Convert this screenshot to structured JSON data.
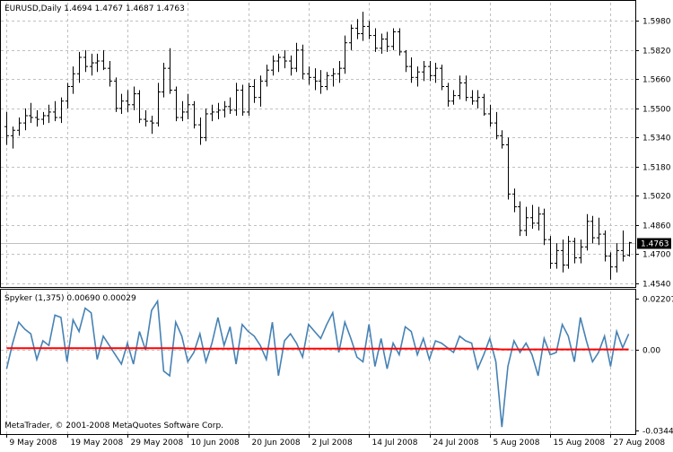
{
  "main_header": {
    "text": "EURUSD,Daily  1.4694 1.4767 1.4687 1.4763"
  },
  "indicator_header": {
    "text": "Spyker (1,375) 0.00690 0.00029"
  },
  "footer": {
    "copyright": "MetaTrader, © 2001-2008 MetaQuotes Software Corp."
  },
  "colors": {
    "background": "#ffffff",
    "grid": "#c0c0c0",
    "bar": "#000000",
    "oscillator": "#4682b4",
    "signal": "#ff0000",
    "price_tag_bg": "#000000",
    "price_tag_fg": "#ffffff"
  },
  "chart_data": [
    {
      "type": "ohlc",
      "symbol": "EURUSD",
      "timeframe": "Daily",
      "last_ohlc": {
        "open": 1.4694,
        "high": 1.4767,
        "low": 1.4687,
        "close": 1.4763
      },
      "current_price_label": "1.4763",
      "y_ticks": [
        "1.5980",
        "1.5820",
        "1.5660",
        "1.5500",
        "1.5340",
        "1.5180",
        "1.5020",
        "1.4860",
        "1.4700",
        "1.4540"
      ],
      "ylim": [
        1.452,
        1.608
      ],
      "x_ticks": [
        "9 May 2008",
        "19 May 2008",
        "29 May 2008",
        "10 Jun 2008",
        "20 Jun 2008",
        "2 Jul 2008",
        "14 Jul 2008",
        "24 Jul 2008",
        "5 Aug 2008",
        "15 Aug 2008",
        "27 Aug 2008"
      ],
      "grid": true,
      "bars": [
        [
          1.54,
          1.548,
          1.53,
          1.535
        ],
        [
          1.535,
          1.54,
          1.528,
          1.538
        ],
        [
          1.538,
          1.545,
          1.535,
          1.542
        ],
        [
          1.542,
          1.55,
          1.538,
          1.546
        ],
        [
          1.546,
          1.553,
          1.542,
          1.545
        ],
        [
          1.545,
          1.549,
          1.54,
          1.544
        ],
        [
          1.544,
          1.548,
          1.541,
          1.546
        ],
        [
          1.546,
          1.552,
          1.542,
          1.548
        ],
        [
          1.548,
          1.554,
          1.543,
          1.545
        ],
        [
          1.545,
          1.556,
          1.542,
          1.554
        ],
        [
          1.554,
          1.564,
          1.55,
          1.562
        ],
        [
          1.562,
          1.573,
          1.558,
          1.569
        ],
        [
          1.569,
          1.581,
          1.564,
          1.578
        ],
        [
          1.578,
          1.582,
          1.57,
          1.573
        ],
        [
          1.573,
          1.58,
          1.568,
          1.575
        ],
        [
          1.575,
          1.58,
          1.57,
          1.576
        ],
        [
          1.576,
          1.582,
          1.571,
          1.572
        ],
        [
          1.572,
          1.576,
          1.562,
          1.565
        ],
        [
          1.565,
          1.567,
          1.548,
          1.55
        ],
        [
          1.55,
          1.558,
          1.547,
          1.554
        ],
        [
          1.554,
          1.56,
          1.548,
          1.552
        ],
        [
          1.552,
          1.562,
          1.549,
          1.558
        ],
        [
          1.558,
          1.56,
          1.542,
          1.544
        ],
        [
          1.544,
          1.549,
          1.54,
          1.543
        ],
        [
          1.543,
          1.546,
          1.536,
          1.542
        ],
        [
          1.542,
          1.564,
          1.54,
          1.559
        ],
        [
          1.559,
          1.575,
          1.556,
          1.572
        ],
        [
          1.572,
          1.583,
          1.558,
          1.56
        ],
        [
          1.56,
          1.562,
          1.543,
          1.545
        ],
        [
          1.545,
          1.554,
          1.543,
          1.548
        ],
        [
          1.548,
          1.558,
          1.544,
          1.552
        ],
        [
          1.552,
          1.554,
          1.539,
          1.541
        ],
        [
          1.541,
          1.545,
          1.53,
          1.534
        ],
        [
          1.534,
          1.55,
          1.532,
          1.547
        ],
        [
          1.547,
          1.552,
          1.543,
          1.548
        ],
        [
          1.548,
          1.553,
          1.544,
          1.549
        ],
        [
          1.549,
          1.554,
          1.545,
          1.551
        ],
        [
          1.551,
          1.556,
          1.547,
          1.549
        ],
        [
          1.549,
          1.564,
          1.546,
          1.56
        ],
        [
          1.56,
          1.563,
          1.546,
          1.548
        ],
        [
          1.548,
          1.564,
          1.546,
          1.562
        ],
        [
          1.562,
          1.566,
          1.553,
          1.556
        ],
        [
          1.556,
          1.568,
          1.551,
          1.565
        ],
        [
          1.565,
          1.574,
          1.562,
          1.571
        ],
        [
          1.571,
          1.579,
          1.568,
          1.576
        ],
        [
          1.576,
          1.58,
          1.57,
          1.578
        ],
        [
          1.578,
          1.582,
          1.572,
          1.576
        ],
        [
          1.576,
          1.579,
          1.568,
          1.572
        ],
        [
          1.572,
          1.586,
          1.57,
          1.582
        ],
        [
          1.582,
          1.585,
          1.566,
          1.569
        ],
        [
          1.569,
          1.573,
          1.563,
          1.567
        ],
        [
          1.567,
          1.572,
          1.56,
          1.565
        ],
        [
          1.565,
          1.571,
          1.558,
          1.562
        ],
        [
          1.562,
          1.57,
          1.56,
          1.568
        ],
        [
          1.568,
          1.572,
          1.562,
          1.569
        ],
        [
          1.569,
          1.576,
          1.564,
          1.572
        ],
        [
          1.572,
          1.59,
          1.569,
          1.586
        ],
        [
          1.586,
          1.596,
          1.582,
          1.594
        ],
        [
          1.594,
          1.599,
          1.588,
          1.591
        ],
        [
          1.591,
          1.603,
          1.587,
          1.595
        ],
        [
          1.595,
          1.598,
          1.588,
          1.59
        ],
        [
          1.59,
          1.594,
          1.581,
          1.583
        ],
        [
          1.583,
          1.591,
          1.58,
          1.588
        ],
        [
          1.588,
          1.592,
          1.581,
          1.584
        ],
        [
          1.584,
          1.594,
          1.582,
          1.592
        ],
        [
          1.592,
          1.594,
          1.579,
          1.581
        ],
        [
          1.581,
          1.582,
          1.57,
          1.573
        ],
        [
          1.573,
          1.578,
          1.564,
          1.567
        ],
        [
          1.567,
          1.573,
          1.562,
          1.57
        ],
        [
          1.57,
          1.576,
          1.565,
          1.573
        ],
        [
          1.573,
          1.576,
          1.565,
          1.568
        ],
        [
          1.568,
          1.575,
          1.564,
          1.572
        ],
        [
          1.572,
          1.574,
          1.56,
          1.562
        ],
        [
          1.562,
          1.564,
          1.551,
          1.554
        ],
        [
          1.554,
          1.56,
          1.552,
          1.557
        ],
        [
          1.557,
          1.568,
          1.555,
          1.564
        ],
        [
          1.564,
          1.568,
          1.554,
          1.556
        ],
        [
          1.556,
          1.56,
          1.552,
          1.554
        ],
        [
          1.554,
          1.56,
          1.55,
          1.556
        ],
        [
          1.556,
          1.558,
          1.546,
          1.547
        ],
        [
          1.547,
          1.552,
          1.54,
          1.542
        ],
        [
          1.542,
          1.548,
          1.533,
          1.535
        ],
        [
          1.535,
          1.538,
          1.528,
          1.53
        ],
        [
          1.53,
          1.534,
          1.5,
          1.503
        ],
        [
          1.503,
          1.506,
          1.493,
          1.496
        ],
        [
          1.496,
          1.499,
          1.48,
          1.483
        ],
        [
          1.483,
          1.496,
          1.48,
          1.49
        ],
        [
          1.49,
          1.497,
          1.484,
          1.487
        ],
        [
          1.487,
          1.496,
          1.483,
          1.492
        ],
        [
          1.492,
          1.495,
          1.475,
          1.478
        ],
        [
          1.478,
          1.48,
          1.462,
          1.465
        ],
        [
          1.465,
          1.476,
          1.462,
          1.472
        ],
        [
          1.472,
          1.478,
          1.46,
          1.464
        ],
        [
          1.464,
          1.48,
          1.462,
          1.477
        ],
        [
          1.477,
          1.479,
          1.465,
          1.468
        ],
        [
          1.468,
          1.478,
          1.465,
          1.474
        ],
        [
          1.474,
          1.492,
          1.472,
          1.488
        ],
        [
          1.488,
          1.491,
          1.476,
          1.479
        ],
        [
          1.479,
          1.49,
          1.475,
          1.481
        ],
        [
          1.481,
          1.483,
          1.466,
          1.469
        ],
        [
          1.469,
          1.471,
          1.456,
          1.463
        ],
        [
          1.463,
          1.476,
          1.46,
          1.472
        ],
        [
          1.472,
          1.483,
          1.466,
          1.469
        ],
        [
          1.4694,
          1.4767,
          1.4687,
          1.4763
        ]
      ]
    },
    {
      "type": "line",
      "name": "Spyker (1,375)",
      "values_label": [
        "0.00690",
        "0.00029"
      ],
      "y_ticks": [
        "0.02207",
        "0.00",
        "-0.03447"
      ],
      "ylim": [
        -0.03447,
        0.02207
      ],
      "series": [
        {
          "values": [
            -0.008,
            0.003,
            0.012,
            0.009,
            0.007,
            -0.004,
            0.004,
            0.002,
            0.015,
            0.014,
            -0.005,
            0.013,
            0.008,
            0.018,
            0.016,
            -0.004,
            0.006,
            0.002,
            -0.002,
            -0.006,
            0.003,
            -0.006,
            0.008,
            0.0,
            0.017,
            0.021,
            -0.009,
            -0.011,
            0.012,
            0.006,
            -0.005,
            -0.001,
            0.007,
            -0.005,
            0.003,
            0.014,
            0.002,
            0.01,
            -0.006,
            0.011,
            0.008,
            0.006,
            0.002,
            -0.004,
            0.012,
            -0.011,
            0.004,
            0.007,
            0.003,
            -0.003,
            0.011,
            0.008,
            0.005,
            0.011,
            0.016,
            -0.001,
            0.012,
            0.005,
            -0.003,
            -0.005,
            0.011,
            -0.007,
            0.005,
            -0.008,
            0.003,
            -0.002,
            0.01,
            0.008,
            -0.002,
            0.005,
            -0.004,
            0.004,
            0.003,
            0.001,
            -0.001,
            0.006,
            0.004,
            0.003,
            -0.008,
            -0.002,
            0.005,
            -0.005,
            -0.033,
            -0.007,
            0.004,
            -0.001,
            0.003,
            -0.002,
            -0.011,
            0.005,
            -0.002,
            -0.001,
            0.011,
            0.006,
            -0.005,
            0.014,
            0.004,
            -0.005,
            -0.001,
            0.006,
            -0.007,
            0.008,
            0.001,
            0.0069
          ]
        },
        {
          "values": [
            0.0008,
            0.0008,
            0.0008,
            0.0008,
            0.0008,
            0.0008,
            0.0008,
            0.0008,
            0.0008,
            0.0008,
            0.0008,
            0.0008,
            0.0008,
            0.0008,
            0.0008,
            0.0008,
            0.0008,
            0.0008,
            0.0008,
            0.0008,
            0.0008,
            0.0008,
            0.0008,
            0.0008,
            0.0008,
            0.0008,
            0.0008,
            0.0008,
            0.0008,
            0.0008,
            0.0006,
            0.0006,
            0.0006,
            0.0006,
            0.0006,
            0.0006,
            0.0006,
            0.0006,
            0.0006,
            0.0006,
            0.0006,
            0.0006,
            0.0006,
            0.0006,
            0.0006,
            0.0006,
            0.0006,
            0.0006,
            0.0006,
            0.0006,
            0.0006,
            0.0006,
            0.0006,
            0.0006,
            0.0006,
            0.0006,
            0.0006,
            0.0006,
            0.0006,
            0.0006,
            0.0006,
            0.0006,
            0.0006,
            0.0006,
            0.0006,
            0.0006,
            0.0006,
            0.0006,
            0.0006,
            0.0006,
            0.0006,
            0.0006,
            0.0006,
            0.0006,
            0.0006,
            0.0006,
            0.0006,
            0.0006,
            0.0006,
            0.0006,
            0.0005,
            0.0004,
            0.0003,
            0.0003,
            0.0003,
            0.0003,
            0.0003,
            0.0003,
            0.0003,
            0.0003,
            0.0003,
            0.0003,
            0.0003,
            0.0003,
            0.0003,
            0.0003,
            0.0003,
            0.0003,
            0.0003,
            0.0003,
            0.0003,
            0.0003,
            0.0003,
            0.0003
          ]
        }
      ]
    }
  ]
}
